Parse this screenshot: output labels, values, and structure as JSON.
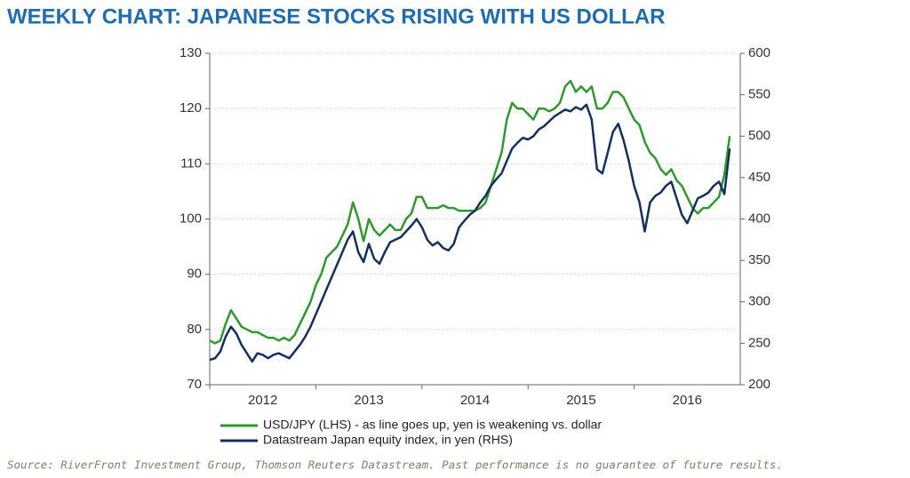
{
  "chart_data": {
    "type": "line",
    "title": "WEEKLY CHART: JAPANESE STOCKS RISING WITH US DOLLAR",
    "source": "Source: RiverFront Investment Group, Thomson Reuters Datastream. Past performance is no guarantee of future results.",
    "x": [
      2012,
      2012.05,
      2012.1,
      2012.15,
      2012.2,
      2012.25,
      2012.3,
      2012.35,
      2012.4,
      2012.45,
      2012.5,
      2012.55,
      2012.6,
      2012.65,
      2012.7,
      2012.75,
      2012.8,
      2012.85,
      2012.9,
      2012.95,
      2013,
      2013.05,
      2013.1,
      2013.15,
      2013.2,
      2013.25,
      2013.3,
      2013.35,
      2013.4,
      2013.45,
      2013.5,
      2013.55,
      2013.6,
      2013.65,
      2013.7,
      2013.75,
      2013.8,
      2013.85,
      2013.9,
      2013.95,
      2014,
      2014.05,
      2014.1,
      2014.15,
      2014.2,
      2014.25,
      2014.3,
      2014.35,
      2014.4,
      2014.45,
      2014.5,
      2014.55,
      2014.6,
      2014.65,
      2014.7,
      2014.75,
      2014.8,
      2014.85,
      2014.9,
      2014.95,
      2015,
      2015.05,
      2015.1,
      2015.15,
      2015.2,
      2015.25,
      2015.3,
      2015.35,
      2015.4,
      2015.45,
      2015.5,
      2015.55,
      2015.6,
      2015.65,
      2015.7,
      2015.75,
      2015.8,
      2015.85,
      2015.9,
      2015.95,
      2016,
      2016.05,
      2016.1,
      2016.15,
      2016.2,
      2016.25,
      2016.3,
      2016.35,
      2016.4,
      2016.45,
      2016.5,
      2016.55,
      2016.6,
      2016.65,
      2016.7,
      2016.75,
      2016.8,
      2016.85,
      2016.9
    ],
    "series": [
      {
        "name": "USD/JPY (LHS) - as line goes up, yen is weakening vs. dollar",
        "color": "#2e9a2e",
        "axis": "y",
        "values": [
          78,
          77.5,
          78,
          81,
          83.5,
          82,
          80.5,
          80,
          79.5,
          79.5,
          79,
          78.5,
          78.5,
          78,
          78.5,
          78,
          79,
          81,
          83,
          85,
          88,
          90,
          93,
          94,
          95,
          97,
          99,
          103,
          100,
          96,
          100,
          98,
          97,
          98,
          99,
          98,
          98,
          100,
          101,
          104,
          104,
          102,
          102,
          102,
          102.5,
          102,
          102,
          101.5,
          101.5,
          101.5,
          101.5,
          102,
          103,
          106,
          109,
          112,
          118,
          121,
          120,
          120,
          119,
          118,
          120,
          120,
          119.5,
          120,
          121,
          124,
          125,
          123,
          124,
          123,
          124,
          120,
          120,
          121,
          123,
          123,
          122,
          120,
          118,
          117,
          114,
          112,
          111,
          109,
          108,
          109,
          107,
          106,
          104,
          102,
          101,
          102,
          102,
          103,
          104,
          108,
          115
        ]
      },
      {
        "name": "Datastream Japan equity index, in yen (RHS)",
        "color": "#14305e",
        "axis": "y2",
        "values": [
          230,
          232,
          240,
          258,
          270,
          262,
          248,
          238,
          228,
          238,
          236,
          232,
          236,
          238,
          235,
          232,
          240,
          248,
          258,
          270,
          285,
          300,
          315,
          330,
          345,
          360,
          375,
          385,
          360,
          348,
          370,
          352,
          346,
          360,
          372,
          375,
          378,
          385,
          392,
          400,
          390,
          375,
          368,
          372,
          365,
          362,
          370,
          390,
          398,
          405,
          410,
          420,
          428,
          440,
          448,
          455,
          470,
          485,
          492,
          498,
          496,
          500,
          508,
          512,
          518,
          524,
          528,
          532,
          530,
          535,
          532,
          538,
          520,
          460,
          455,
          480,
          505,
          515,
          495,
          470,
          440,
          420,
          385,
          420,
          428,
          432,
          440,
          445,
          425,
          405,
          395,
          410,
          425,
          428,
          432,
          440,
          445,
          430,
          485
        ]
      }
    ],
    "xlim": [
      2012,
      2017
    ],
    "xticks": [
      2012,
      2013,
      2014,
      2015,
      2016
    ],
    "ylim": [
      70,
      130
    ],
    "yticks": [
      70,
      80,
      90,
      100,
      110,
      120,
      130
    ],
    "y2lim": [
      200,
      600
    ],
    "y2ticks": [
      200,
      250,
      300,
      350,
      400,
      450,
      500,
      550,
      600
    ],
    "grid": true
  }
}
